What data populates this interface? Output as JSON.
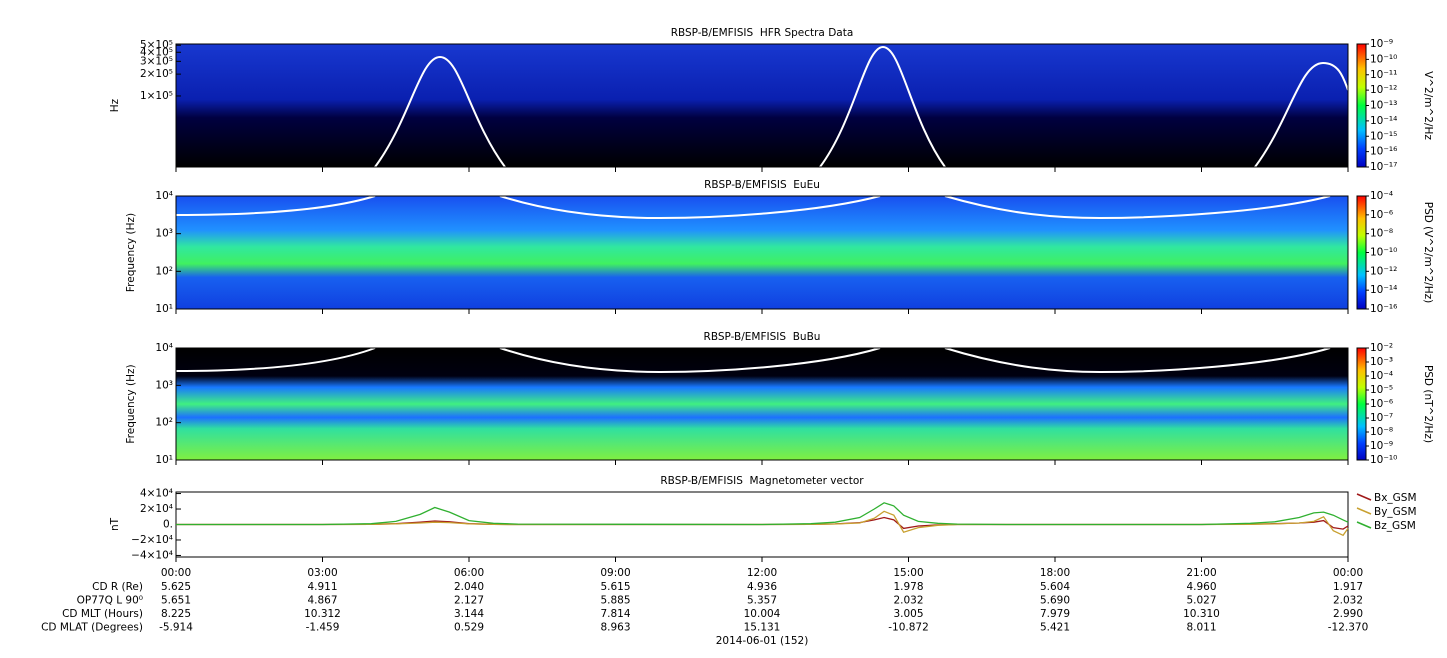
{
  "chart_data": [
    {
      "type": "spectrogram",
      "title": "RBSP-B/EMFISIS  HFR Spectra Data",
      "ylabel": "Hz",
      "log_y": true,
      "ylim": [
        10500,
        520000
      ],
      "yticks": [
        {
          "value": 500000,
          "label": "5×10⁵"
        },
        {
          "value": 400000,
          "label": "4×10⁵"
        },
        {
          "value": 300000,
          "label": "3×10⁵"
        },
        {
          "value": 200000,
          "label": "2×10⁵"
        },
        {
          "value": 100000,
          "label": "1×10⁵"
        }
      ],
      "colorbar": {
        "label": "V^2/m^2/Hz",
        "lim": [
          1e-17,
          1e-09
        ],
        "ticks": [
          {
            "value": 1e-09,
            "label": "10⁻⁹"
          },
          {
            "value": 1e-10,
            "label": "10⁻¹⁰"
          },
          {
            "value": 1e-11,
            "label": "10⁻¹¹"
          },
          {
            "value": 1e-12,
            "label": "10⁻¹²"
          },
          {
            "value": 1e-13,
            "label": "10⁻¹³"
          },
          {
            "value": 1e-14,
            "label": "10⁻¹⁴"
          },
          {
            "value": 1e-15,
            "label": "10⁻¹⁵"
          },
          {
            "value": 1e-16,
            "label": "10⁻¹⁶"
          },
          {
            "value": 1e-17,
            "label": "10⁻¹⁷"
          }
        ]
      }
    },
    {
      "type": "spectrogram",
      "title": "RBSP-B/EMFISIS  EuEu",
      "ylabel": "Frequency (Hz)",
      "log_y": true,
      "ylim": [
        10,
        10000
      ],
      "yticks": [
        {
          "value": 10000,
          "label": "10⁴"
        },
        {
          "value": 1000,
          "label": "10³"
        },
        {
          "value": 100,
          "label": "10²"
        },
        {
          "value": 10,
          "label": "10¹"
        }
      ],
      "colorbar": {
        "label": "PSD (V^2/m^2/Hz)",
        "lim": [
          1e-16,
          0.0001
        ],
        "ticks": [
          {
            "value": 0.0001,
            "label": "10⁻⁴"
          },
          {
            "value": 1e-06,
            "label": "10⁻⁶"
          },
          {
            "value": 1e-08,
            "label": "10⁻⁸"
          },
          {
            "value": 1e-10,
            "label": "10⁻¹⁰"
          },
          {
            "value": 1e-12,
            "label": "10⁻¹²"
          },
          {
            "value": 1e-14,
            "label": "10⁻¹⁴"
          },
          {
            "value": 1e-16,
            "label": "10⁻¹⁶"
          }
        ]
      }
    },
    {
      "type": "spectrogram",
      "title": "RBSP-B/EMFISIS  BuBu",
      "ylabel": "Frequency (Hz)",
      "log_y": true,
      "ylim": [
        10,
        10000
      ],
      "yticks": [
        {
          "value": 10000,
          "label": "10⁴"
        },
        {
          "value": 1000,
          "label": "10³"
        },
        {
          "value": 100,
          "label": "10²"
        },
        {
          "value": 10,
          "label": "10¹"
        }
      ],
      "colorbar": {
        "label": "PSD (nT^2/Hz)",
        "lim": [
          1e-10,
          0.01
        ],
        "ticks": [
          {
            "value": 0.01,
            "label": "10⁻²"
          },
          {
            "value": 0.001,
            "label": "10⁻³"
          },
          {
            "value": 0.0001,
            "label": "10⁻⁴"
          },
          {
            "value": 1e-05,
            "label": "10⁻⁵"
          },
          {
            "value": 1e-06,
            "label": "10⁻⁶"
          },
          {
            "value": 1e-07,
            "label": "10⁻⁷"
          },
          {
            "value": 1e-08,
            "label": "10⁻⁸"
          },
          {
            "value": 1e-09,
            "label": "10⁻⁹"
          },
          {
            "value": 1e-10,
            "label": "10⁻¹⁰"
          }
        ]
      }
    },
    {
      "type": "line",
      "title": "RBSP-B/EMFISIS  Magnetometer vector",
      "ylabel": "nT",
      "ylim": [
        -42000,
        42000
      ],
      "yticks": [
        {
          "value": 40000,
          "label": "4×10⁴"
        },
        {
          "value": 20000,
          "label": "2×10⁴"
        },
        {
          "value": 0,
          "label": "0."
        },
        {
          "value": -20000,
          "label": "−2×10⁴"
        },
        {
          "value": -40000,
          "label": "−4×10⁴"
        }
      ],
      "xlim": [
        0,
        24
      ],
      "xticks": [
        {
          "value": 0,
          "label": "00:00"
        },
        {
          "value": 3,
          "label": "03:00"
        },
        {
          "value": 6,
          "label": "06:00"
        },
        {
          "value": 9,
          "label": "09:00"
        },
        {
          "value": 12,
          "label": "12:00"
        },
        {
          "value": 15,
          "label": "15:00"
        },
        {
          "value": 18,
          "label": "18:00"
        },
        {
          "value": 21,
          "label": "21:00"
        },
        {
          "value": 24,
          "label": "00:00"
        }
      ],
      "xlabel": "2014-06-01 (152)",
      "x": [
        0,
        3,
        4,
        4.5,
        5,
        5.3,
        5.6,
        6,
        6.5,
        7,
        12,
        13,
        13.5,
        14,
        14.3,
        14.5,
        14.7,
        14.9,
        15.2,
        15.6,
        16,
        17,
        21,
        22,
        22.5,
        23,
        23.3,
        23.5,
        23.7,
        23.9,
        24
      ],
      "series": [
        {
          "name": "Bx_GSM",
          "color": "#a01818",
          "values": [
            0,
            0,
            300,
            1000,
            3000,
            4500,
            3500,
            1000,
            300,
            0,
            0,
            300,
            800,
            2500,
            6000,
            9000,
            6000,
            -5000,
            -2000,
            -500,
            0,
            0,
            0,
            500,
            1000,
            2000,
            3000,
            5000,
            -4000,
            -6000,
            -2000
          ]
        },
        {
          "name": "By_GSM",
          "color": "#c8a030",
          "values": [
            0,
            0,
            200,
            800,
            2000,
            3000,
            2500,
            800,
            200,
            0,
            0,
            200,
            600,
            2000,
            8000,
            17000,
            12000,
            -10000,
            -4000,
            -1000,
            0,
            0,
            0,
            300,
            800,
            2000,
            4000,
            10000,
            -8000,
            -14000,
            -5000
          ]
        },
        {
          "name": "Bz_GSM",
          "color": "#30b030",
          "values": [
            0,
            0,
            1000,
            4000,
            13000,
            22000,
            16000,
            5000,
            1500,
            500,
            0,
            1000,
            3000,
            9000,
            20000,
            28000,
            24000,
            12000,
            4000,
            1500,
            500,
            0,
            0,
            1500,
            3500,
            9000,
            15000,
            16000,
            12000,
            6000,
            3000
          ]
        }
      ],
      "ephemeris": [
        {
          "label": "CD R (Re)",
          "values": [
            "5.625",
            "4.911",
            "2.040",
            "5.615",
            "4.936",
            "1.978",
            "5.604",
            "4.960",
            "1.917"
          ]
        },
        {
          "label": "OP77Q L 90⁰",
          "values": [
            "5.651",
            "4.867",
            "2.127",
            "5.885",
            "5.357",
            "2.032",
            "5.690",
            "5.027",
            "2.032"
          ]
        },
        {
          "label": "CD MLT (Hours)",
          "values": [
            "8.225",
            "10.312",
            "3.144",
            "7.814",
            "10.004",
            "3.005",
            "7.979",
            "10.310",
            "2.990"
          ]
        },
        {
          "label": "CD MLAT (Degrees)",
          "values": [
            "-5.914",
            "-1.459",
            "0.529",
            "8.963",
            "15.131",
            "-10.872",
            "5.421",
            "8.011",
            "-12.370"
          ]
        }
      ]
    }
  ]
}
